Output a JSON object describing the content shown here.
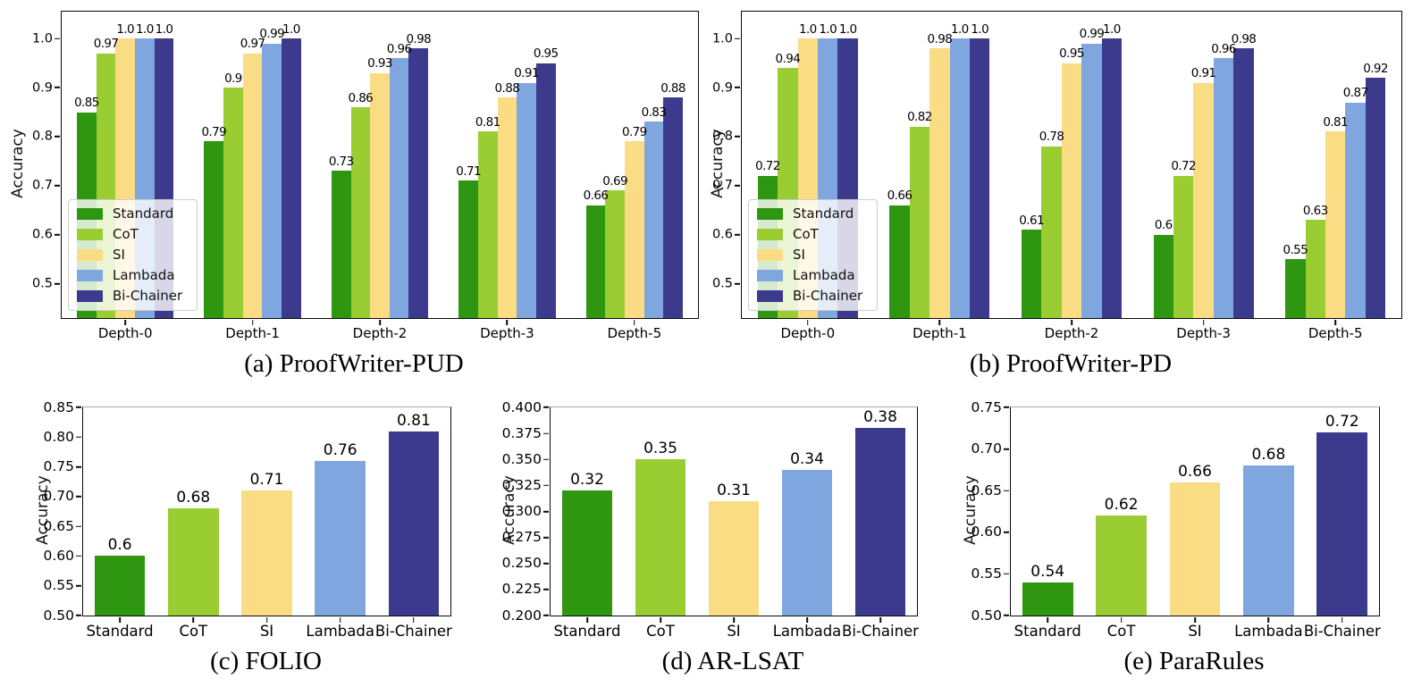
{
  "methods": [
    "Standard",
    "CoT",
    "SI",
    "Lambada",
    "Bi-Chainer"
  ],
  "colors": {
    "Standard": "#2E9610",
    "CoT": "#9ACD32",
    "SI": "#FADC85",
    "Lambada": "#7FA6DF",
    "Bi-Chainer": "#3C3A8C"
  },
  "chart_data": [
    {
      "id": "a",
      "type": "bar",
      "caption": "(a) ProofWriter-PUD",
      "ylabel": "Accuracy",
      "ylim": [
        0.43,
        1.055
      ],
      "yticks": [
        0.5,
        0.6,
        0.7,
        0.8,
        0.9,
        1.0
      ],
      "ytick_labels": [
        "0.5",
        "0.6",
        "0.7",
        "0.8",
        "0.9",
        "1.0"
      ],
      "categories": [
        "Depth-0",
        "Depth-1",
        "Depth-2",
        "Depth-3",
        "Depth-5"
      ],
      "legend_position": "lower-left",
      "grid": false,
      "series": [
        {
          "name": "Standard",
          "values": [
            0.85,
            0.79,
            0.73,
            0.71,
            0.66
          ],
          "labels": [
            "0.85",
            "0.79",
            "0.73",
            "0.71",
            "0.66"
          ]
        },
        {
          "name": "CoT",
          "values": [
            0.97,
            0.9,
            0.86,
            0.81,
            0.69
          ],
          "labels": [
            "0.97",
            "0.9",
            "0.86",
            "0.81",
            "0.69"
          ]
        },
        {
          "name": "SI",
          "values": [
            1.0,
            0.97,
            0.93,
            0.88,
            0.79
          ],
          "labels": [
            "1.0",
            "0.97",
            "0.93",
            "0.88",
            "0.79"
          ]
        },
        {
          "name": "Lambada",
          "values": [
            1.0,
            0.99,
            0.96,
            0.91,
            0.83
          ],
          "labels": [
            "1.0",
            "0.99",
            "0.96",
            "0.91",
            "0.83"
          ]
        },
        {
          "name": "Bi-Chainer",
          "values": [
            1.0,
            1.0,
            0.98,
            0.95,
            0.88
          ],
          "labels": [
            "1.0",
            "1.0",
            "0.98",
            "0.95",
            "0.88"
          ]
        }
      ]
    },
    {
      "id": "b",
      "type": "bar",
      "caption": "(b) ProofWriter-PD",
      "ylabel": "Accuracy",
      "ylim": [
        0.43,
        1.055
      ],
      "yticks": [
        0.5,
        0.6,
        0.7,
        0.8,
        0.9,
        1.0
      ],
      "ytick_labels": [
        "0.5",
        "0.6",
        "0.7",
        "0.8",
        "0.9",
        "1.0"
      ],
      "categories": [
        "Depth-0",
        "Depth-1",
        "Depth-2",
        "Depth-3",
        "Depth-5"
      ],
      "legend_position": "lower-left",
      "grid": false,
      "series": [
        {
          "name": "Standard",
          "values": [
            0.72,
            0.66,
            0.61,
            0.6,
            0.55
          ],
          "labels": [
            "0.72",
            "0.66",
            "0.61",
            "0.6",
            "0.55"
          ]
        },
        {
          "name": "CoT",
          "values": [
            0.94,
            0.82,
            0.78,
            0.72,
            0.63
          ],
          "labels": [
            "0.94",
            "0.82",
            "0.78",
            "0.72",
            "0.63"
          ]
        },
        {
          "name": "SI",
          "values": [
            1.0,
            0.98,
            0.95,
            0.91,
            0.81
          ],
          "labels": [
            "1.0",
            "0.98",
            "0.95",
            "0.91",
            "0.81"
          ]
        },
        {
          "name": "Lambada",
          "values": [
            1.0,
            1.0,
            0.99,
            0.96,
            0.87
          ],
          "labels": [
            "1.0",
            "1.0",
            "0.99",
            "0.96",
            "0.87"
          ]
        },
        {
          "name": "Bi-Chainer",
          "values": [
            1.0,
            1.0,
            1.0,
            0.98,
            0.92
          ],
          "labels": [
            "1.0",
            "1.0",
            "1.0",
            "0.98",
            "0.92"
          ]
        }
      ]
    },
    {
      "id": "c",
      "type": "bar",
      "caption": "(c) FOLIO",
      "ylabel": "Accuracy",
      "ylim": [
        0.5,
        0.85
      ],
      "yticks": [
        0.5,
        0.55,
        0.6,
        0.65,
        0.7,
        0.75,
        0.8,
        0.85
      ],
      "ytick_labels": [
        "0.50",
        "0.55",
        "0.60",
        "0.65",
        "0.70",
        "0.75",
        "0.80",
        "0.85"
      ],
      "categories": [
        "Standard",
        "CoT",
        "SI",
        "Lambada",
        "Bi-Chainer"
      ],
      "grid": false,
      "values": [
        0.6,
        0.68,
        0.71,
        0.76,
        0.81
      ],
      "labels": [
        "0.6",
        "0.68",
        "0.71",
        "0.76",
        "0.81"
      ]
    },
    {
      "id": "d",
      "type": "bar",
      "caption": "(d) AR-LSAT",
      "ylabel": "Accuracy",
      "ylim": [
        0.2,
        0.4
      ],
      "yticks": [
        0.2,
        0.225,
        0.25,
        0.275,
        0.3,
        0.325,
        0.35,
        0.375,
        0.4
      ],
      "ytick_labels": [
        "0.200",
        "0.225",
        "0.250",
        "0.275",
        "0.300",
        "0.325",
        "0.350",
        "0.375",
        "0.400"
      ],
      "categories": [
        "Standard",
        "CoT",
        "SI",
        "Lambada",
        "Bi-Chainer"
      ],
      "grid": false,
      "values": [
        0.32,
        0.35,
        0.31,
        0.34,
        0.38
      ],
      "labels": [
        "0.32",
        "0.35",
        "0.31",
        "0.34",
        "0.38"
      ]
    },
    {
      "id": "e",
      "type": "bar",
      "caption": "(e) ParaRules",
      "ylabel": "Accuracy",
      "ylim": [
        0.5,
        0.75
      ],
      "yticks": [
        0.5,
        0.55,
        0.6,
        0.65,
        0.7,
        0.75
      ],
      "ytick_labels": [
        "0.50",
        "0.55",
        "0.60",
        "0.65",
        "0.70",
        "0.75"
      ],
      "categories": [
        "Standard",
        "CoT",
        "SI",
        "Lambada",
        "Bi-Chainer"
      ],
      "grid": false,
      "values": [
        0.54,
        0.62,
        0.66,
        0.68,
        0.72
      ],
      "labels": [
        "0.54",
        "0.62",
        "0.66",
        "0.68",
        "0.72"
      ]
    }
  ]
}
